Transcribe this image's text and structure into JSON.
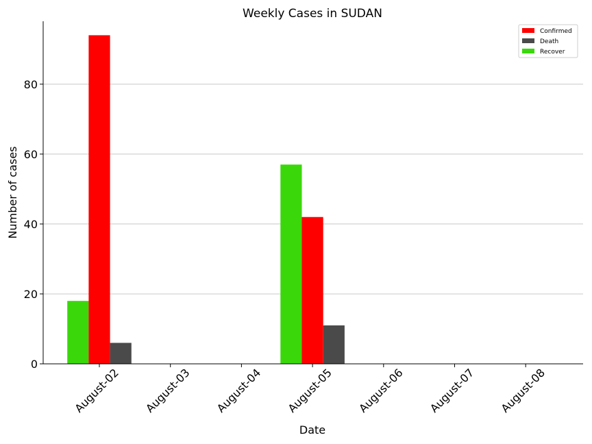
{
  "chart_data": {
    "type": "bar",
    "title": "Weekly Cases in SUDAN",
    "xlabel": "Date",
    "ylabel": "Number of cases",
    "categories": [
      "August-02",
      "August-03",
      "August-04",
      "August-05",
      "August-06",
      "August-07",
      "August-08"
    ],
    "series": [
      {
        "name": "Recover",
        "color": "#3ad80a",
        "values": [
          18,
          0,
          0,
          57,
          0,
          0,
          0
        ]
      },
      {
        "name": "Confirmed",
        "color": "#ff0000",
        "values": [
          94,
          0,
          0,
          42,
          0,
          0,
          0
        ]
      },
      {
        "name": "Death",
        "color": "#4a4a4a",
        "values": [
          6,
          0,
          0,
          11,
          0,
          0,
          0
        ]
      }
    ],
    "legend_order": [
      "Confirmed",
      "Death",
      "Recover"
    ],
    "ylim": [
      0,
      98
    ],
    "yticks": [
      0,
      20,
      40,
      60,
      80
    ],
    "grid": "horizontal",
    "legend_position": "top-right"
  }
}
